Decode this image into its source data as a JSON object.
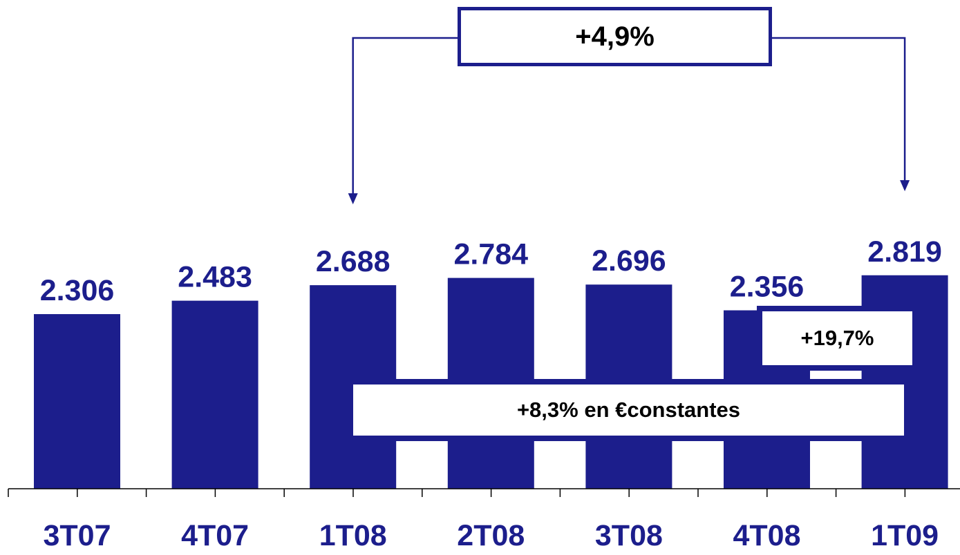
{
  "chart_data": {
    "type": "bar",
    "categories": [
      "3T07",
      "4T07",
      "1T08",
      "2T08",
      "3T08",
      "4T08",
      "1T09"
    ],
    "values": [
      2306,
      2483,
      2688,
      2784,
      2696,
      2356,
      2819
    ],
    "value_labels": [
      "2.306",
      "2.483",
      "2.688",
      "2.784",
      "2.696",
      "2.356",
      "2.819"
    ],
    "title": "",
    "xlabel": "",
    "ylabel": "",
    "grid": false,
    "colors": {
      "bar": "#1c1e8c",
      "text": "#1c1e8c"
    },
    "annotations": {
      "growth_1T08_1T09": "+4,9%",
      "growth_4T08_1T09": "+19,7%",
      "growth_constant_eur": "+8,3% en €constantes"
    }
  }
}
